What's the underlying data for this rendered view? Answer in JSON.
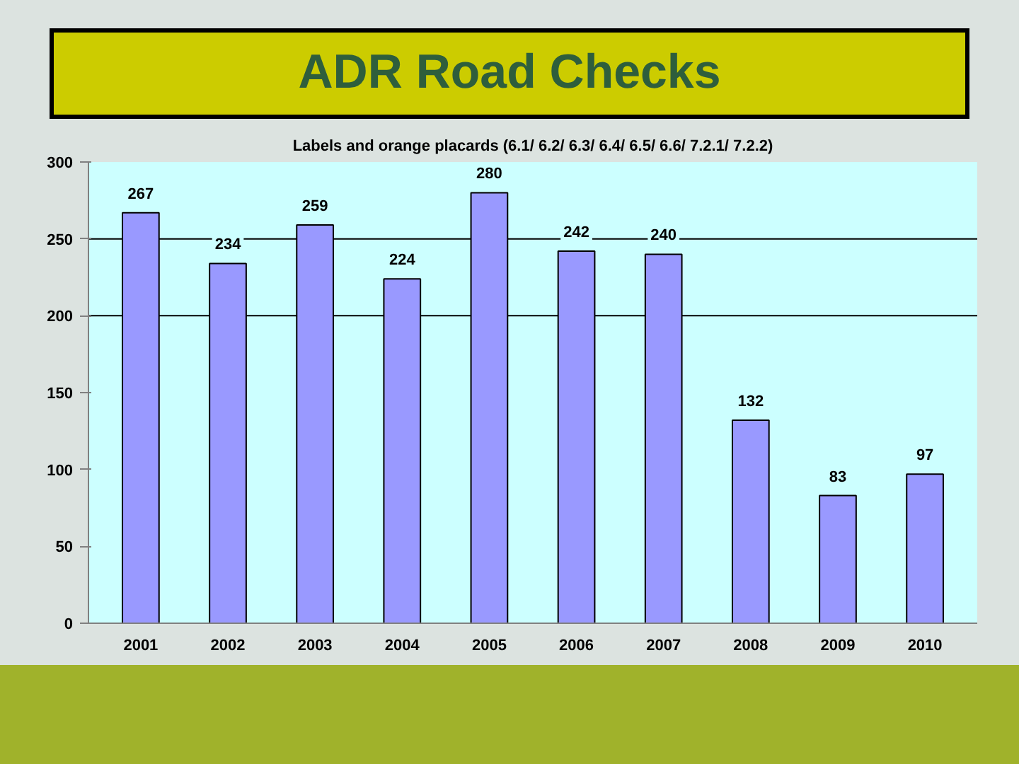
{
  "chart_data": {
    "type": "bar",
    "title": "ADR Road Checks",
    "subtitle": "Labels and orange placards (6.1/ 6.2/ 6.3/ 6.4/ 6.5/ 6.6/ 7.2.1/ 7.2.2)",
    "categories": [
      "2001",
      "2002",
      "2003",
      "2004",
      "2005",
      "2006",
      "2007",
      "2008",
      "2009",
      "2010"
    ],
    "values": [
      267,
      234,
      259,
      224,
      280,
      242,
      240,
      132,
      83,
      97
    ],
    "color": "#9999ff",
    "ylim": [
      0,
      300
    ],
    "yticks": [
      0,
      50,
      100,
      150,
      200,
      250,
      300
    ],
    "data_labels": true,
    "ref_lines": [
      {
        "axis": "y",
        "value": 200,
        "color": "#000000"
      },
      {
        "axis": "y",
        "value": 250,
        "color": "#000000"
      }
    ]
  }
}
